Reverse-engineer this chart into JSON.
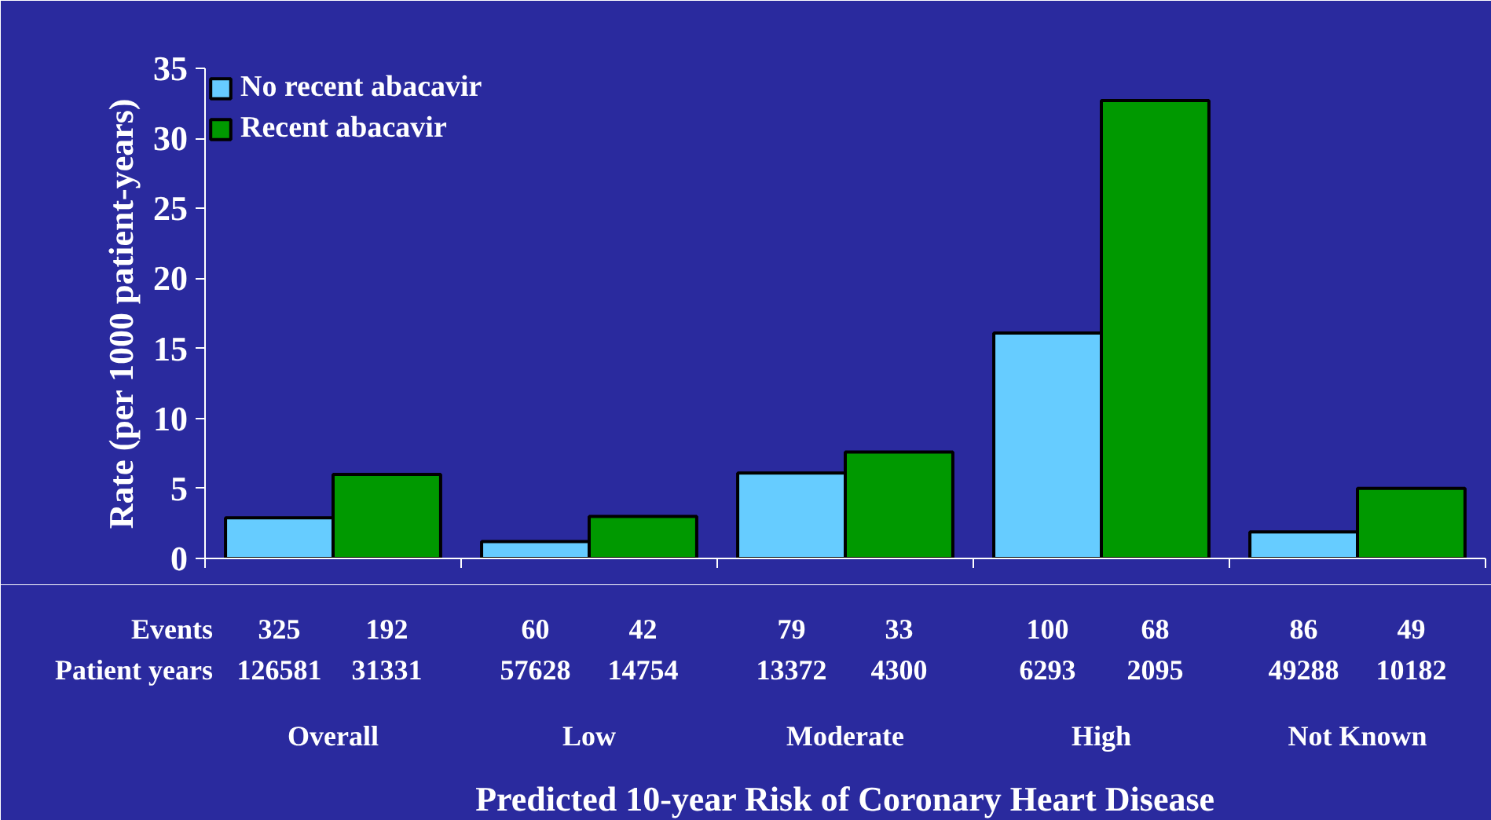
{
  "chart_data": {
    "type": "bar",
    "xlabel": "Predicted 10-year Risk of Coronary Heart Disease",
    "ylabel": "Rate (per 1000 patient-years)",
    "categories": [
      "Overall",
      "Low",
      "Moderate",
      "High",
      "Not Known"
    ],
    "series": [
      {
        "name": "No recent abacavir",
        "color": "#66ccff",
        "values": [
          2.9,
          1.2,
          6.1,
          16.1,
          1.9
        ]
      },
      {
        "name": "Recent abacavir",
        "color": "#009900",
        "values": [
          6.0,
          3.0,
          7.6,
          32.7,
          5.0
        ]
      }
    ],
    "ylim": [
      0,
      35
    ],
    "yticks": [
      0,
      5,
      10,
      15,
      20,
      25,
      30,
      35
    ],
    "grid": false,
    "legend": "top left",
    "annotations": [
      "Events",
      "325",
      "192",
      "60",
      "42",
      "79",
      "33",
      "100",
      "68",
      "86",
      "49",
      "Patient years",
      "126581",
      "31331",
      "57628",
      "14754",
      "13372",
      "4300",
      "6293",
      "2095",
      "49288",
      "10182"
    ]
  }
}
